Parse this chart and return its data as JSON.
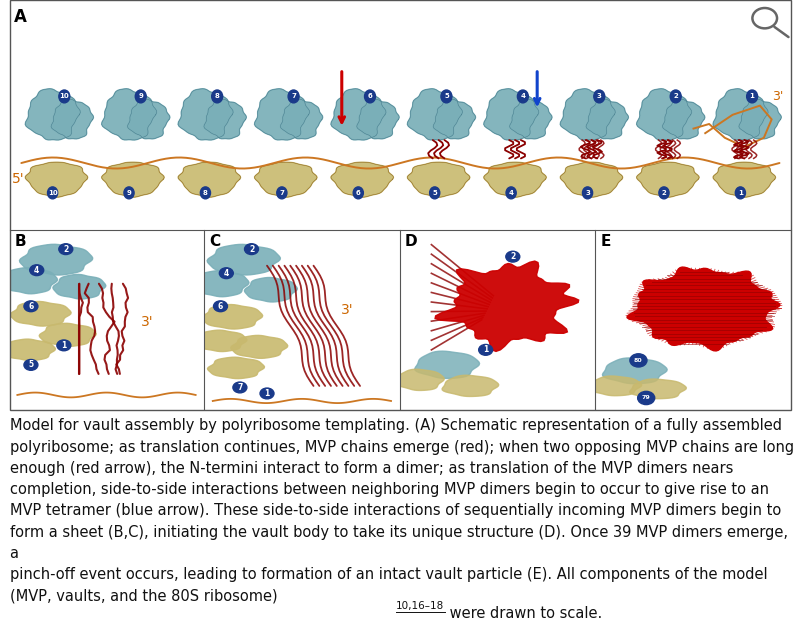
{
  "bg_color": "#ffffff",
  "fig_width": 8.0,
  "fig_height": 6.26,
  "panel_bg_A": "#b8cdd4",
  "panel_bg_lower": "#b8cdd4",
  "teal_color": "#7aafb8",
  "yellow_color": "#c8b96e",
  "dark_red": "#8b0000",
  "red_arrow": "#cc0000",
  "blue_arrow": "#1144cc",
  "orange_label": "#cc6600",
  "circle_blue": "#1a3a8a",
  "caption_text_1": "Model for vault assembly by polyribosome templating. (A) Schematic representation of a fully assembled",
  "caption_text_2": "polyribosome; as translation continues, MVP chains emerge (red); when two opposing MVP chains are long",
  "caption_text_3": "enough (red arrow), the N-termini interact to form a dimer; as translation of the MVP dimers nears",
  "caption_text_4": "completion, side-to-side interactions between neighboring MVP dimers begin to occur to give rise to an",
  "caption_text_5": "MVP tetramer (blue arrow). These side-to-side interactions of sequentially incoming MVP dimers begin to",
  "caption_text_6": "form a sheet (B,C), initiating the vault body to take its unique structure (D). Once 39 MVP dimers emerge, a",
  "caption_text_7": "pinch-off event occurs, leading to formation of an intact vault particle (E). All components of the model",
  "caption_text_8": "(MVP, vaults, and the 80S ribosome)",
  "caption_super": "10,16–18",
  "caption_end": " were drawn to scale.",
  "caption_fontsize": 10.5,
  "label_fontsize": 11
}
